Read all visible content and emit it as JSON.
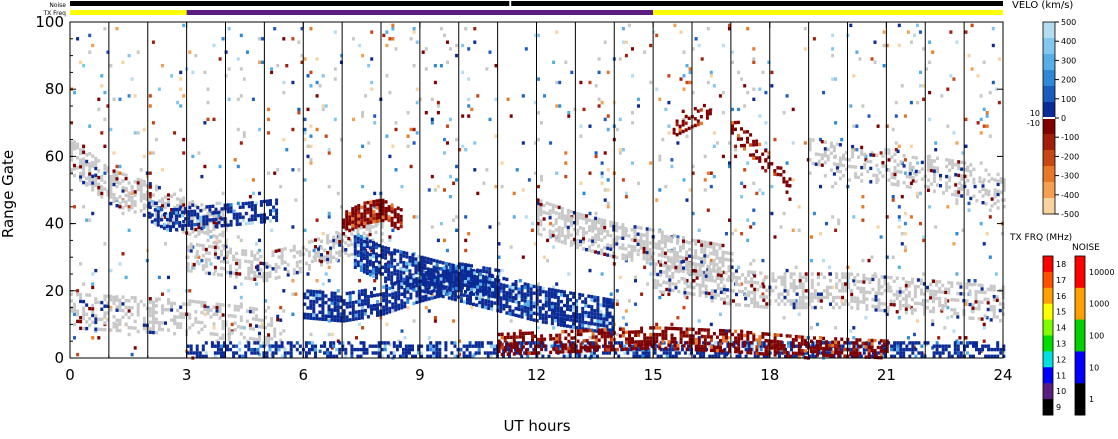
{
  "chart_data": {
    "type": "heatmap",
    "xlabel": "UT hours",
    "ylabel": "Range Gate",
    "xlim": [
      0,
      24
    ],
    "ylim": [
      0,
      100
    ],
    "xticks": [
      0,
      3,
      6,
      9,
      12,
      15,
      18,
      21,
      24
    ],
    "yticks": [
      0,
      20,
      40,
      60,
      80,
      100
    ],
    "scan_boundaries_ut": [
      1,
      2,
      3,
      4,
      5,
      6,
      7,
      8,
      9,
      10,
      11,
      12,
      13,
      14,
      15,
      16,
      17,
      18,
      19,
      20,
      21,
      22,
      23
    ],
    "status_strips": {
      "noise_label": "Noise",
      "txfreq_label": "TX Freq",
      "noise_segments": [
        {
          "start": 0,
          "end": 11.3,
          "color": "#000000"
        },
        {
          "start": 11.35,
          "end": 24,
          "color": "#000000"
        }
      ],
      "txfreq_segments": [
        {
          "start": 0,
          "end": 3,
          "color": "#ffff00",
          "freq_mhz": 15
        },
        {
          "start": 3,
          "end": 15,
          "color": "#5a1e82",
          "freq_mhz": 10
        },
        {
          "start": 15,
          "end": 24,
          "color": "#ffff00",
          "freq_mhz": 15
        }
      ]
    },
    "velocity_scale": {
      "title": "VELO (km/s)",
      "unit": "km/s",
      "range": [
        -500,
        500
      ],
      "ticks": [
        "500",
        "400",
        "300",
        "200",
        "100",
        "0",
        "-100",
        "-200",
        "-300",
        "-400",
        "-500"
      ],
      "inner_ticks": [
        "10",
        "-10"
      ],
      "colors": [
        "#b4dcf0",
        "#82c8ee",
        "#55aee6",
        "#2d88d6",
        "#1a5cbe",
        "#0a2a96",
        "#800000",
        "#a01e0a",
        "#c84614",
        "#e67828",
        "#f5a050",
        "#fad2a0"
      ]
    },
    "ground_scatter_color": "#c8c8c8",
    "txfreq_scale": {
      "title": "TX FRQ (MHz)",
      "ticks": [
        "18",
        "17",
        "16",
        "15",
        "14",
        "13",
        "12",
        "11",
        "10",
        "9"
      ],
      "colors": [
        "#ff0000",
        "#ff5000",
        "#ffa000",
        "#ffff00",
        "#80ff00",
        "#00e000",
        "#00e0e0",
        "#0000ff",
        "#5a1e82",
        "#000000"
      ]
    },
    "noise_scale": {
      "title": "NOISE",
      "ticks": [
        "10000",
        "1000",
        "100",
        "10",
        "1"
      ],
      "colors": [
        "#ff0000",
        "#ffa000",
        "#00d000",
        "#0000ff",
        "#000000"
      ]
    },
    "dense_regions": [
      {
        "name": "ground-scatter-upper",
        "kind": "gs",
        "pts": [
          [
            0,
            60
          ],
          [
            1,
            51
          ],
          [
            2,
            47
          ],
          [
            3,
            42
          ],
          [
            4,
            38
          ]
        ],
        "width": 5,
        "density": 0.55
      },
      {
        "name": "ground-scatter-mid",
        "kind": "gs",
        "pts": [
          [
            3,
            30
          ],
          [
            5,
            27
          ],
          [
            6,
            30
          ],
          [
            7,
            34
          ],
          [
            8,
            38
          ]
        ],
        "width": 4,
        "density": 0.45
      },
      {
        "name": "ground-scatter-lower",
        "kind": "gs",
        "pts": [
          [
            0,
            14
          ],
          [
            1.5,
            13
          ],
          [
            3,
            12
          ],
          [
            4.5,
            10
          ],
          [
            5.5,
            8
          ]
        ],
        "width": 5,
        "density": 0.4
      },
      {
        "name": "ground-scatter-afternoon",
        "kind": "gs",
        "pts": [
          [
            12,
            42
          ],
          [
            13,
            38
          ],
          [
            14,
            35
          ],
          [
            15,
            33
          ],
          [
            16,
            30
          ],
          [
            17,
            28
          ]
        ],
        "width": 5,
        "density": 0.55
      },
      {
        "name": "ground-scatter-evening",
        "kind": "gs",
        "pts": [
          [
            15,
            25
          ],
          [
            16,
            23
          ],
          [
            17,
            21
          ],
          [
            18,
            20
          ],
          [
            19,
            20
          ],
          [
            20,
            20
          ],
          [
            21,
            19
          ],
          [
            22,
            18
          ],
          [
            23,
            17
          ],
          [
            24,
            16
          ]
        ],
        "width": 5,
        "density": 0.45
      },
      {
        "name": "ground-scatter-night",
        "kind": "gs",
        "pts": [
          [
            19,
            60
          ],
          [
            20,
            58
          ],
          [
            21,
            57
          ],
          [
            22,
            55
          ],
          [
            23,
            53
          ],
          [
            24,
            49
          ]
        ],
        "width": 5,
        "density": 0.35
      },
      {
        "name": "blue-echo-morning",
        "kind": "pos",
        "pts": [
          [
            2,
            44
          ],
          [
            2.5,
            41
          ],
          [
            3.5,
            42
          ],
          [
            4.5,
            43
          ],
          [
            5.3,
            44
          ]
        ],
        "width": 3,
        "density": 0.6
      },
      {
        "name": "blue-echo-midday",
        "kind": "pos",
        "pts": [
          [
            7.3,
            32
          ],
          [
            8,
            28
          ],
          [
            9,
            25
          ],
          [
            10,
            22
          ],
          [
            11,
            19
          ],
          [
            12,
            16
          ],
          [
            13,
            14
          ],
          [
            14,
            12
          ]
        ],
        "width": 5,
        "density": 0.8
      },
      {
        "name": "blue-echo-lower",
        "kind": "pos",
        "pts": [
          [
            6,
            16
          ],
          [
            7,
            15
          ],
          [
            8,
            17
          ],
          [
            9,
            21
          ],
          [
            10,
            24
          ],
          [
            11,
            22
          ]
        ],
        "width": 4,
        "density": 0.7
      },
      {
        "name": "red-echo-noon",
        "kind": "neg",
        "pts": [
          [
            7,
            40
          ],
          [
            7.5,
            43
          ],
          [
            8,
            44
          ],
          [
            8.5,
            41
          ]
        ],
        "width": 3,
        "density": 0.8
      },
      {
        "name": "blue-near-range",
        "kind": "pos",
        "pts": [
          [
            3,
            2
          ],
          [
            6,
            2
          ],
          [
            9,
            2
          ],
          [
            12,
            2
          ],
          [
            15,
            2
          ],
          [
            18,
            2
          ],
          [
            21,
            2
          ],
          [
            24,
            2
          ]
        ],
        "width": 2.5,
        "density": 0.55
      },
      {
        "name": "red-near-range",
        "kind": "neg",
        "pts": [
          [
            11,
            4
          ],
          [
            13,
            5
          ],
          [
            15,
            6
          ],
          [
            17,
            5
          ],
          [
            19,
            3
          ],
          [
            21,
            2
          ]
        ],
        "width": 3,
        "density": 0.55
      },
      {
        "name": "red-evening-upper",
        "kind": "neg",
        "pts": [
          [
            15.5,
            69
          ],
          [
            16,
            72
          ],
          [
            16.5,
            74
          ]
        ],
        "width": 3,
        "density": 0.35
      },
      {
        "name": "red-evening-arc",
        "kind": "neg",
        "pts": [
          [
            17,
            69
          ],
          [
            17.5,
            63
          ],
          [
            18,
            57
          ],
          [
            18.5,
            50
          ]
        ],
        "width": 3,
        "density": 0.35
      }
    ]
  }
}
